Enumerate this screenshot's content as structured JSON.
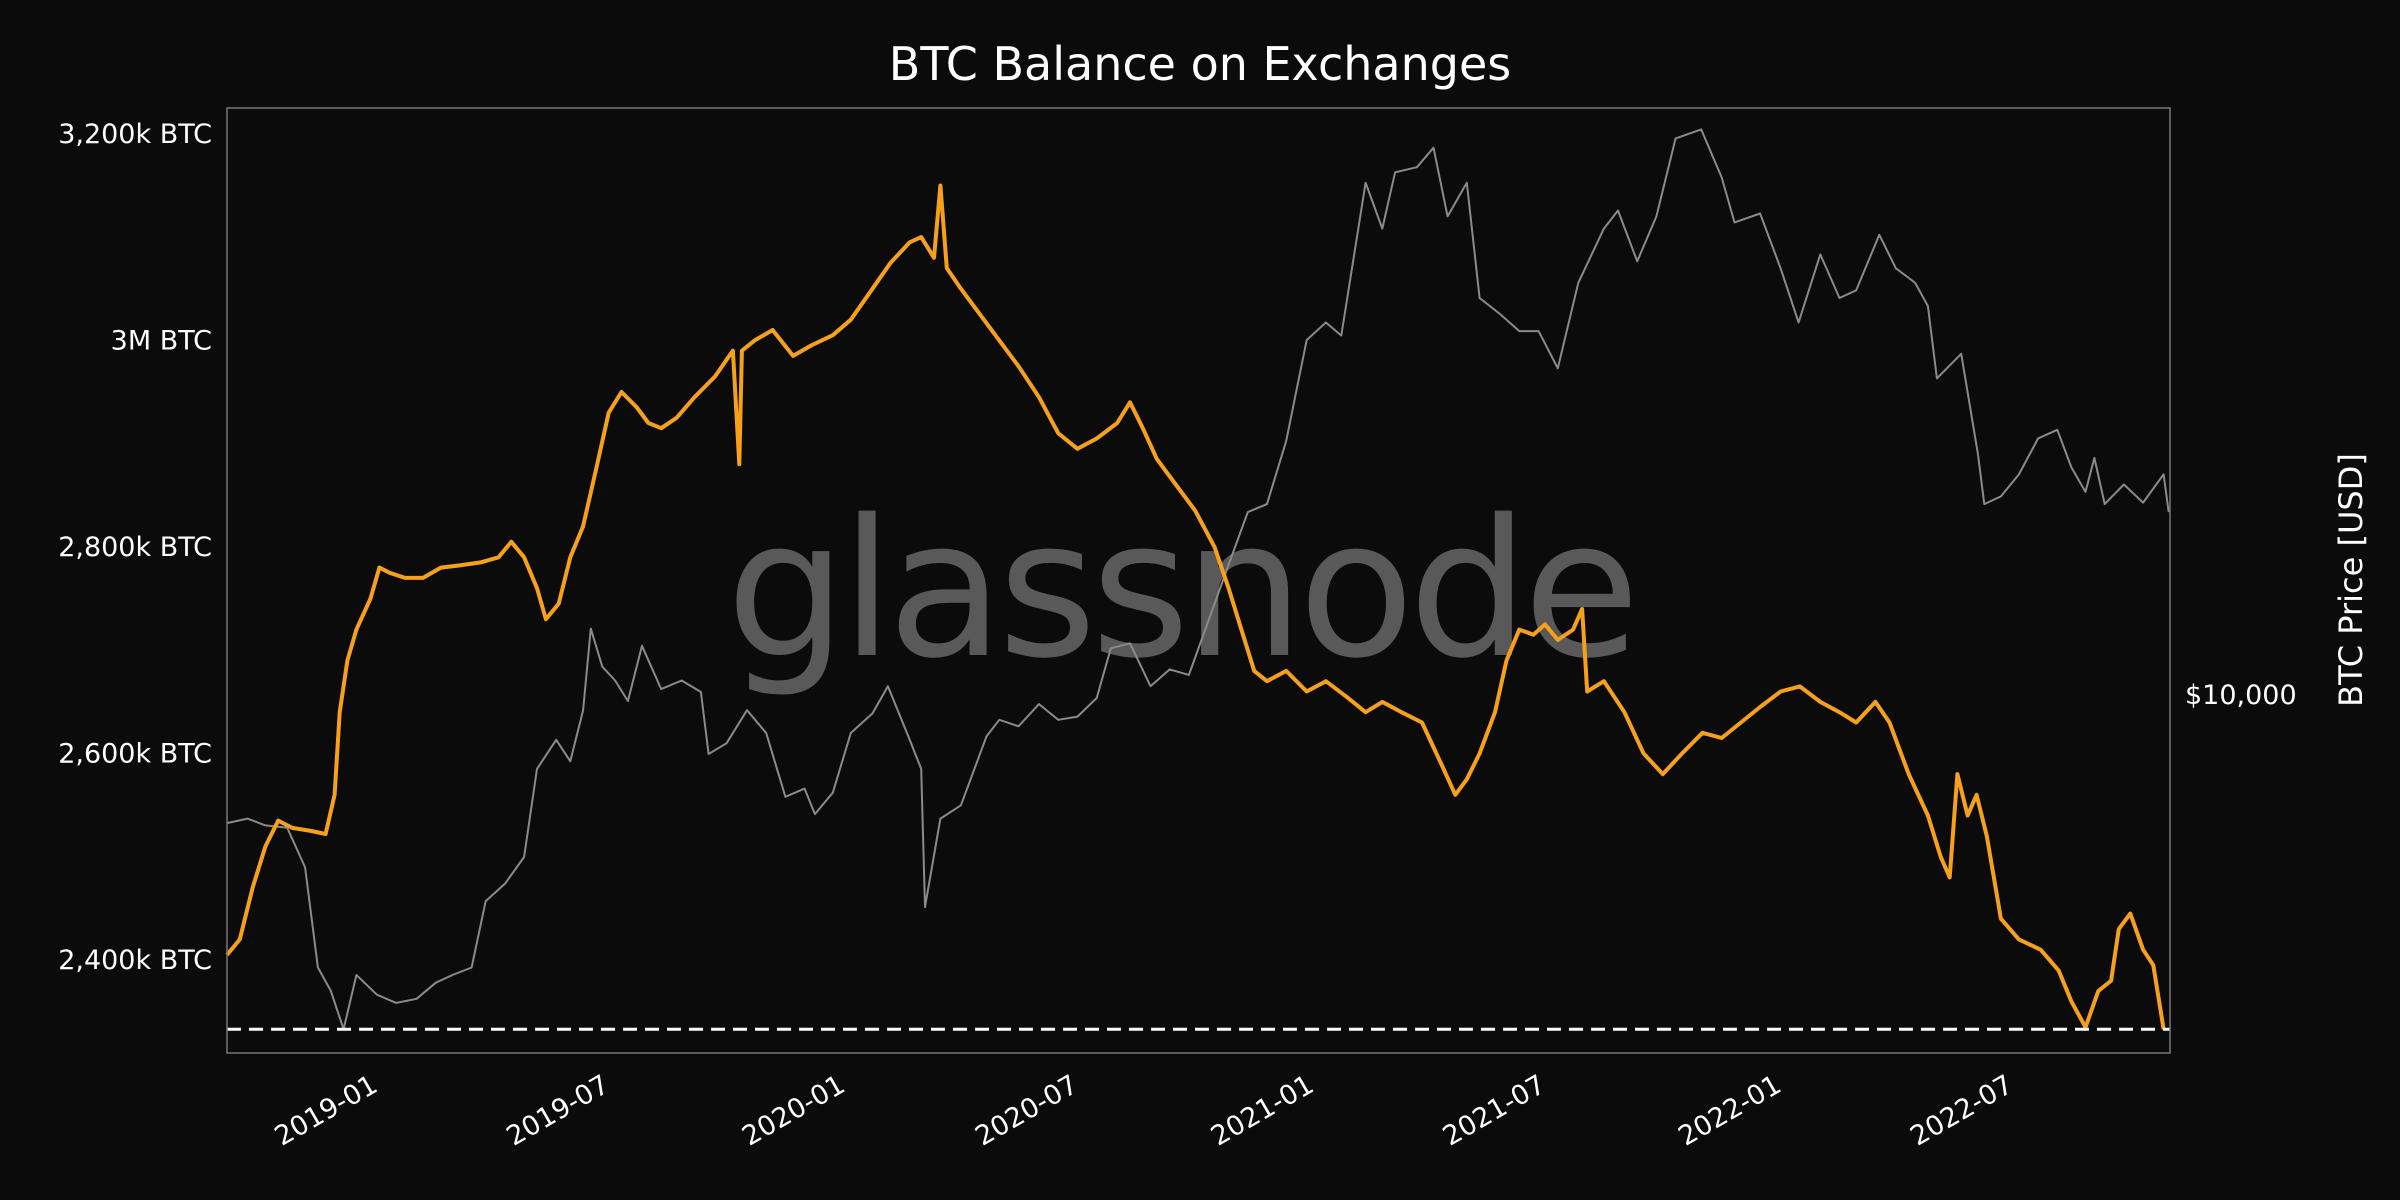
{
  "chart_data": {
    "type": "line",
    "title": "BTC Balance on Exchanges",
    "watermark": "glassnode",
    "x_ticks": [
      "2019-01",
      "2019-07",
      "2020-01",
      "2020-07",
      "2021-01",
      "2021-07",
      "2022-01",
      "2022-07"
    ],
    "x_range": [
      "2018-09-15",
      "2022-11-10"
    ],
    "y_left": {
      "ticks": [
        {
          "value": 2400,
          "label": "2,400k BTC"
        },
        {
          "value": 2600,
          "label": "2,600k BTC"
        },
        {
          "value": 2800,
          "label": "2,800k BTC"
        },
        {
          "value": 3000,
          "label": "3M BTC"
        },
        {
          "value": 3200,
          "label": "3,200k BTC"
        }
      ],
      "range": [
        2310,
        3225
      ],
      "unit": "k BTC"
    },
    "y_right": {
      "label": "BTC Price [USD]",
      "scale": "log",
      "ticks": [
        {
          "value": 10000,
          "label": "$10,000"
        }
      ],
      "range": [
        3000,
        72000
      ]
    },
    "reference_line": {
      "value": 2333,
      "style": "dashed",
      "color": "#ffffff"
    },
    "colors": {
      "balance": "#f7a11a",
      "price": "#8a8a8a",
      "background": "#0b0b0b",
      "frame": "#777777"
    },
    "series": [
      {
        "key": "balance",
        "axis": "left",
        "points": [
          [
            "2018-09-15",
            2405
          ],
          [
            "2018-09-25",
            2420
          ],
          [
            "2018-10-05",
            2470
          ],
          [
            "2018-10-15",
            2510
          ],
          [
            "2018-10-25",
            2535
          ],
          [
            "2018-11-05",
            2528
          ],
          [
            "2018-11-20",
            2525
          ],
          [
            "2018-12-01",
            2522
          ],
          [
            "2018-12-08",
            2560
          ],
          [
            "2018-12-12",
            2640
          ],
          [
            "2018-12-18",
            2690
          ],
          [
            "2018-12-25",
            2720
          ],
          [
            "2019-01-05",
            2750
          ],
          [
            "2019-01-12",
            2780
          ],
          [
            "2019-01-20",
            2775
          ],
          [
            "2019-02-01",
            2770
          ],
          [
            "2019-02-15",
            2770
          ],
          [
            "2019-03-01",
            2780
          ],
          [
            "2019-03-15",
            2782
          ],
          [
            "2019-04-01",
            2785
          ],
          [
            "2019-04-15",
            2790
          ],
          [
            "2019-04-25",
            2805
          ],
          [
            "2019-05-05",
            2790
          ],
          [
            "2019-05-15",
            2760
          ],
          [
            "2019-05-22",
            2730
          ],
          [
            "2019-06-01",
            2745
          ],
          [
            "2019-06-10",
            2790
          ],
          [
            "2019-06-20",
            2820
          ],
          [
            "2019-07-01",
            2880
          ],
          [
            "2019-07-10",
            2930
          ],
          [
            "2019-07-20",
            2950
          ],
          [
            "2019-08-01",
            2935
          ],
          [
            "2019-08-10",
            2920
          ],
          [
            "2019-08-20",
            2915
          ],
          [
            "2019-09-01",
            2925
          ],
          [
            "2019-09-15",
            2945
          ],
          [
            "2019-10-01",
            2965
          ],
          [
            "2019-10-15",
            2990
          ],
          [
            "2019-10-20",
            2880
          ],
          [
            "2019-10-22",
            2990
          ],
          [
            "2019-11-01",
            3000
          ],
          [
            "2019-11-15",
            3010
          ],
          [
            "2019-12-01",
            2985
          ],
          [
            "2019-12-15",
            2995
          ],
          [
            "2020-01-01",
            3005
          ],
          [
            "2020-01-15",
            3020
          ],
          [
            "2020-02-01",
            3050
          ],
          [
            "2020-02-15",
            3075
          ],
          [
            "2020-03-01",
            3095
          ],
          [
            "2020-03-10",
            3100
          ],
          [
            "2020-03-20",
            3080
          ],
          [
            "2020-03-25",
            3150
          ],
          [
            "2020-03-30",
            3070
          ],
          [
            "2020-04-10",
            3050
          ],
          [
            "2020-04-25",
            3025
          ],
          [
            "2020-05-10",
            3000
          ],
          [
            "2020-05-25",
            2975
          ],
          [
            "2020-06-10",
            2945
          ],
          [
            "2020-06-25",
            2910
          ],
          [
            "2020-07-10",
            2895
          ],
          [
            "2020-07-25",
            2905
          ],
          [
            "2020-08-10",
            2920
          ],
          [
            "2020-08-20",
            2940
          ],
          [
            "2020-08-30",
            2915
          ],
          [
            "2020-09-10",
            2885
          ],
          [
            "2020-09-25",
            2860
          ],
          [
            "2020-10-10",
            2835
          ],
          [
            "2020-10-25",
            2800
          ],
          [
            "2020-11-05",
            2760
          ],
          [
            "2020-11-15",
            2720
          ],
          [
            "2020-11-25",
            2680
          ],
          [
            "2020-12-05",
            2670
          ],
          [
            "2020-12-20",
            2680
          ],
          [
            "2021-01-05",
            2660
          ],
          [
            "2021-01-20",
            2670
          ],
          [
            "2021-02-05",
            2655
          ],
          [
            "2021-02-20",
            2640
          ],
          [
            "2021-03-05",
            2650
          ],
          [
            "2021-03-20",
            2640
          ],
          [
            "2021-04-05",
            2630
          ],
          [
            "2021-04-20",
            2590
          ],
          [
            "2021-05-01",
            2560
          ],
          [
            "2021-05-10",
            2575
          ],
          [
            "2021-05-20",
            2600
          ],
          [
            "2021-06-01",
            2640
          ],
          [
            "2021-06-10",
            2690
          ],
          [
            "2021-06-20",
            2720
          ],
          [
            "2021-07-01",
            2715
          ],
          [
            "2021-07-10",
            2725
          ],
          [
            "2021-07-20",
            2710
          ],
          [
            "2021-08-01",
            2720
          ],
          [
            "2021-08-08",
            2740
          ],
          [
            "2021-08-12",
            2660
          ],
          [
            "2021-08-25",
            2670
          ],
          [
            "2021-09-10",
            2640
          ],
          [
            "2021-09-25",
            2600
          ],
          [
            "2021-10-10",
            2580
          ],
          [
            "2021-10-25",
            2600
          ],
          [
            "2021-11-10",
            2620
          ],
          [
            "2021-11-25",
            2615
          ],
          [
            "2021-12-10",
            2630
          ],
          [
            "2021-12-25",
            2645
          ],
          [
            "2022-01-10",
            2660
          ],
          [
            "2022-01-25",
            2665
          ],
          [
            "2022-02-10",
            2650
          ],
          [
            "2022-02-25",
            2640
          ],
          [
            "2022-03-10",
            2630
          ],
          [
            "2022-03-25",
            2650
          ],
          [
            "2022-04-05",
            2630
          ],
          [
            "2022-04-20",
            2580
          ],
          [
            "2022-05-05",
            2540
          ],
          [
            "2022-05-15",
            2500
          ],
          [
            "2022-05-22",
            2480
          ],
          [
            "2022-05-28",
            2580
          ],
          [
            "2022-06-05",
            2540
          ],
          [
            "2022-06-12",
            2560
          ],
          [
            "2022-06-20",
            2520
          ],
          [
            "2022-07-01",
            2440
          ],
          [
            "2022-07-15",
            2420
          ],
          [
            "2022-08-01",
            2410
          ],
          [
            "2022-08-15",
            2390
          ],
          [
            "2022-08-25",
            2360
          ],
          [
            "2022-09-05",
            2335
          ],
          [
            "2022-09-15",
            2370
          ],
          [
            "2022-09-25",
            2380
          ],
          [
            "2022-10-01",
            2430
          ],
          [
            "2022-10-10",
            2445
          ],
          [
            "2022-10-20",
            2410
          ],
          [
            "2022-10-28",
            2395
          ],
          [
            "2022-11-05",
            2333
          ]
        ]
      },
      {
        "key": "price",
        "axis": "right",
        "points": [
          [
            "2018-09-15",
            6500
          ],
          [
            "2018-10-01",
            6600
          ],
          [
            "2018-10-15",
            6450
          ],
          [
            "2018-11-01",
            6400
          ],
          [
            "2018-11-15",
            5600
          ],
          [
            "2018-11-25",
            4000
          ],
          [
            "2018-12-05",
            3700
          ],
          [
            "2018-12-15",
            3250
          ],
          [
            "2018-12-25",
            3900
          ],
          [
            "2019-01-10",
            3650
          ],
          [
            "2019-01-25",
            3550
          ],
          [
            "2019-02-10",
            3600
          ],
          [
            "2019-02-25",
            3800
          ],
          [
            "2019-03-10",
            3900
          ],
          [
            "2019-03-25",
            4000
          ],
          [
            "2019-04-05",
            5000
          ],
          [
            "2019-04-20",
            5300
          ],
          [
            "2019-05-05",
            5800
          ],
          [
            "2019-05-15",
            7800
          ],
          [
            "2019-05-30",
            8600
          ],
          [
            "2019-06-10",
            8000
          ],
          [
            "2019-06-20",
            9500
          ],
          [
            "2019-06-26",
            12500
          ],
          [
            "2019-07-05",
            11000
          ],
          [
            "2019-07-15",
            10500
          ],
          [
            "2019-07-25",
            9800
          ],
          [
            "2019-08-05",
            11800
          ],
          [
            "2019-08-20",
            10200
          ],
          [
            "2019-09-05",
            10500
          ],
          [
            "2019-09-20",
            10100
          ],
          [
            "2019-09-26",
            8200
          ],
          [
            "2019-10-10",
            8500
          ],
          [
            "2019-10-26",
            9500
          ],
          [
            "2019-11-10",
            8800
          ],
          [
            "2019-11-25",
            7100
          ],
          [
            "2019-12-10",
            7300
          ],
          [
            "2019-12-18",
            6700
          ],
          [
            "2020-01-01",
            7200
          ],
          [
            "2020-01-15",
            8800
          ],
          [
            "2020-02-01",
            9400
          ],
          [
            "2020-02-13",
            10300
          ],
          [
            "2020-03-01",
            8600
          ],
          [
            "2020-03-10",
            7800
          ],
          [
            "2020-03-13",
            4900
          ],
          [
            "2020-03-25",
            6600
          ],
          [
            "2020-04-10",
            6900
          ],
          [
            "2020-04-30",
            8700
          ],
          [
            "2020-05-10",
            9200
          ],
          [
            "2020-05-25",
            9000
          ],
          [
            "2020-06-10",
            9700
          ],
          [
            "2020-06-25",
            9200
          ],
          [
            "2020-07-10",
            9300
          ],
          [
            "2020-07-25",
            9900
          ],
          [
            "2020-08-05",
            11700
          ],
          [
            "2020-08-20",
            11900
          ],
          [
            "2020-09-05",
            10300
          ],
          [
            "2020-09-20",
            10900
          ],
          [
            "2020-10-05",
            10700
          ],
          [
            "2020-10-20",
            12800
          ],
          [
            "2020-11-05",
            15500
          ],
          [
            "2020-11-20",
            18500
          ],
          [
            "2020-12-05",
            19000
          ],
          [
            "2020-12-20",
            23500
          ],
          [
            "2021-01-05",
            33000
          ],
          [
            "2021-01-20",
            35000
          ],
          [
            "2021-02-01",
            33500
          ],
          [
            "2021-02-20",
            56000
          ],
          [
            "2021-03-05",
            48000
          ],
          [
            "2021-03-15",
            58000
          ],
          [
            "2021-04-01",
            59000
          ],
          [
            "2021-04-14",
            63000
          ],
          [
            "2021-04-25",
            50000
          ],
          [
            "2021-05-10",
            56000
          ],
          [
            "2021-05-20",
            38000
          ],
          [
            "2021-06-05",
            36000
          ],
          [
            "2021-06-20",
            34000
          ],
          [
            "2021-07-05",
            34000
          ],
          [
            "2021-07-20",
            30000
          ],
          [
            "2021-08-05",
            40000
          ],
          [
            "2021-08-25",
            48000
          ],
          [
            "2021-09-05",
            51000
          ],
          [
            "2021-09-20",
            43000
          ],
          [
            "2021-10-05",
            50000
          ],
          [
            "2021-10-20",
            65000
          ],
          [
            "2021-11-09",
            67000
          ],
          [
            "2021-11-25",
            57000
          ],
          [
            "2021-12-05",
            49000
          ],
          [
            "2021-12-25",
            50500
          ],
          [
            "2022-01-10",
            42000
          ],
          [
            "2022-01-24",
            35000
          ],
          [
            "2022-02-10",
            44000
          ],
          [
            "2022-02-25",
            38000
          ],
          [
            "2022-03-10",
            39000
          ],
          [
            "2022-03-28",
            47000
          ],
          [
            "2022-04-10",
            42000
          ],
          [
            "2022-04-25",
            40000
          ],
          [
            "2022-05-05",
            37000
          ],
          [
            "2022-05-12",
            29000
          ],
          [
            "2022-05-31",
            31500
          ],
          [
            "2022-06-13",
            22500
          ],
          [
            "2022-06-18",
            19000
          ],
          [
            "2022-07-01",
            19500
          ],
          [
            "2022-07-15",
            21000
          ],
          [
            "2022-07-30",
            23700
          ],
          [
            "2022-08-14",
            24400
          ],
          [
            "2022-08-25",
            21500
          ],
          [
            "2022-09-05",
            19800
          ],
          [
            "2022-09-12",
            22200
          ],
          [
            "2022-09-20",
            19000
          ],
          [
            "2022-10-05",
            20300
          ],
          [
            "2022-10-20",
            19100
          ],
          [
            "2022-11-05",
            21000
          ],
          [
            "2022-11-09",
            18500
          ]
        ]
      }
    ]
  }
}
